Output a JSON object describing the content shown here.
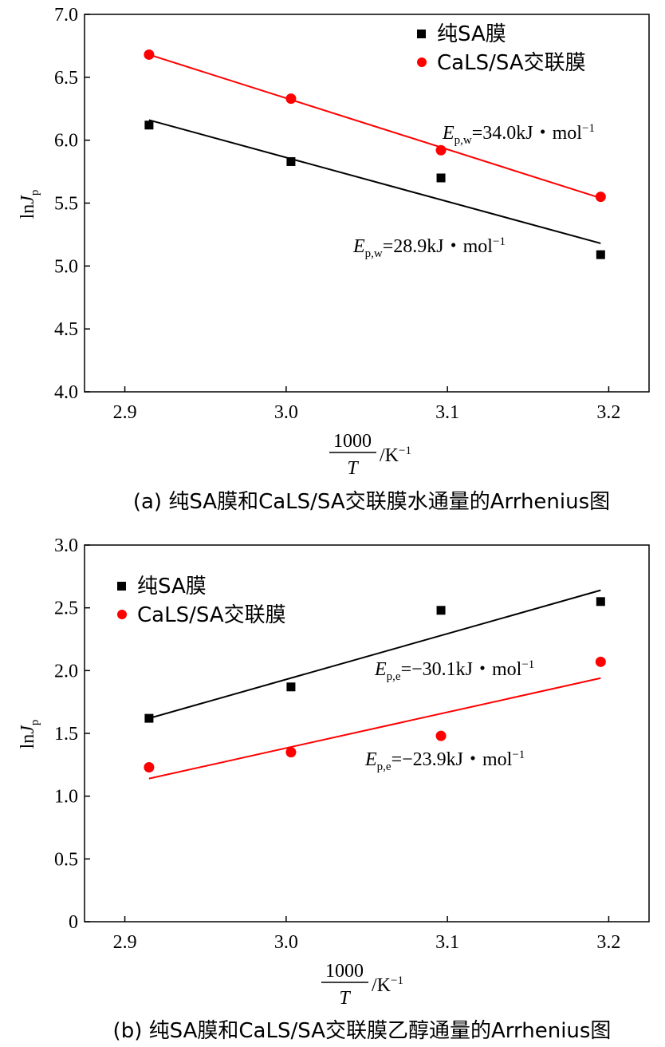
{
  "chart_data": [
    {
      "type": "scatter",
      "panel": "a",
      "caption": "(a) 纯SA膜和CaLS/SA交联膜水通量的Arrhenius图",
      "xlabel_num": "1000",
      "xlabel_den": "T",
      "xlabel_unit": "/K",
      "xlabel_unit_sup": "−1",
      "ylabel_main": "ln",
      "ylabel_var": "J",
      "ylabel_sub": "p",
      "xlim": [
        2.875,
        3.225
      ],
      "ylim": [
        4.0,
        7.0
      ],
      "xticks": [
        2.9,
        3.0,
        3.1,
        3.2
      ],
      "xtick_labels": [
        "2.9",
        "3.0",
        "3.1",
        "3.2"
      ],
      "yticks": [
        4.0,
        4.5,
        5.0,
        5.5,
        6.0,
        6.5,
        7.0
      ],
      "ytick_labels": [
        "4.0",
        "4.5",
        "5.0",
        "5.5",
        "6.0",
        "6.5",
        "7.0"
      ],
      "legend": [
        "纯SA膜",
        "CaLS/SA交联膜"
      ],
      "series": [
        {
          "name": "纯SA膜",
          "color": "#000000",
          "marker": "square",
          "x": [
            2.915,
            3.003,
            3.096,
            3.195
          ],
          "y": [
            6.12,
            5.83,
            5.7,
            5.09
          ],
          "fit": [
            [
              2.915,
              6.16
            ],
            [
              3.195,
              5.18
            ]
          ],
          "annotation": {
            "E": "E",
            "sub": "p,w",
            "text": "=28.9kJ・mol",
            "sup": "−1"
          }
        },
        {
          "name": "CaLS/SA交联膜",
          "color": "#ff0000",
          "marker": "circle",
          "x": [
            2.915,
            3.003,
            3.096,
            3.195
          ],
          "y": [
            6.68,
            6.33,
            5.92,
            5.55
          ],
          "fit": [
            [
              2.915,
              6.68
            ],
            [
              3.195,
              5.54
            ]
          ],
          "annotation": {
            "E": "E",
            "sub": "p,w",
            "text": "=34.0kJ・mol",
            "sup": "−1"
          }
        }
      ]
    },
    {
      "type": "scatter",
      "panel": "b",
      "caption": "(b) 纯SA膜和CaLS/SA交联膜乙醇通量的Arrhenius图",
      "xlabel_num": "1000",
      "xlabel_den": "T",
      "xlabel_unit": "/K",
      "xlabel_unit_sup": "−1",
      "ylabel_main": "ln",
      "ylabel_var": "J",
      "ylabel_sub": "p",
      "xlim": [
        2.875,
        3.225
      ],
      "ylim": [
        0,
        3.0
      ],
      "xticks": [
        2.9,
        3.0,
        3.1,
        3.2
      ],
      "xtick_labels": [
        "2.9",
        "3.0",
        "3.1",
        "3.2"
      ],
      "yticks": [
        0,
        0.5,
        1.0,
        1.5,
        2.0,
        2.5,
        3.0
      ],
      "ytick_labels": [
        "0",
        "0.5",
        "1.0",
        "1.5",
        "2.0",
        "2.5",
        "3.0"
      ],
      "legend": [
        "纯SA膜",
        "CaLS/SA交联膜"
      ],
      "series": [
        {
          "name": "纯SA膜",
          "color": "#000000",
          "marker": "square",
          "x": [
            2.915,
            3.003,
            3.096,
            3.195
          ],
          "y": [
            1.62,
            1.87,
            2.48,
            2.55
          ],
          "fit": [
            [
              2.915,
              1.62
            ],
            [
              3.195,
              2.64
            ]
          ],
          "annotation": {
            "E": "E",
            "sub": "p,e",
            "text": "=−30.1kJ・mol",
            "sup": "−1"
          }
        },
        {
          "name": "CaLS/SA交联膜",
          "color": "#ff0000",
          "marker": "circle",
          "x": [
            2.915,
            3.003,
            3.096,
            3.195
          ],
          "y": [
            1.23,
            1.35,
            1.48,
            2.07
          ],
          "fit": [
            [
              2.915,
              1.14
            ],
            [
              3.195,
              1.94
            ]
          ],
          "annotation": {
            "E": "E",
            "sub": "p,e",
            "text": "=−23.9kJ・mol",
            "sup": "−1"
          }
        }
      ]
    }
  ]
}
